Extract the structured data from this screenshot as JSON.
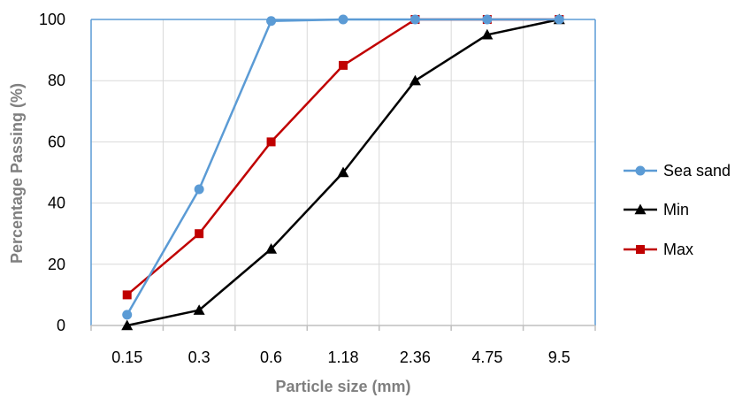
{
  "chart_data": {
    "type": "line",
    "title": "",
    "xlabel": "Particle size (mm)",
    "ylabel": "Percentage Passing (%)",
    "categories": [
      "0.15",
      "0.3",
      "0.6",
      "1.18",
      "2.36",
      "4.75",
      "9.5"
    ],
    "yticks": [
      "0",
      "20",
      "40",
      "60",
      "80",
      "100"
    ],
    "ylim": [
      0,
      100
    ],
    "grid": true,
    "legend_position": "right",
    "series": [
      {
        "name": "Sea sand",
        "marker": "circle",
        "color": "#5b9bd5",
        "values": [
          3.5,
          44.5,
          99.5,
          100,
          100,
          100,
          100
        ]
      },
      {
        "name": "Min",
        "marker": "triangle",
        "color": "#000000",
        "values": [
          0,
          5,
          25,
          50,
          80,
          95,
          100
        ]
      },
      {
        "name": "Max",
        "marker": "square",
        "color": "#c00000",
        "values": [
          10,
          30,
          60,
          85,
          100,
          100,
          100
        ]
      }
    ],
    "colors": {
      "gridline": "#d9d9d9",
      "plot_border": "#5b9bd5",
      "axis_title": "#7f7f7f"
    }
  }
}
